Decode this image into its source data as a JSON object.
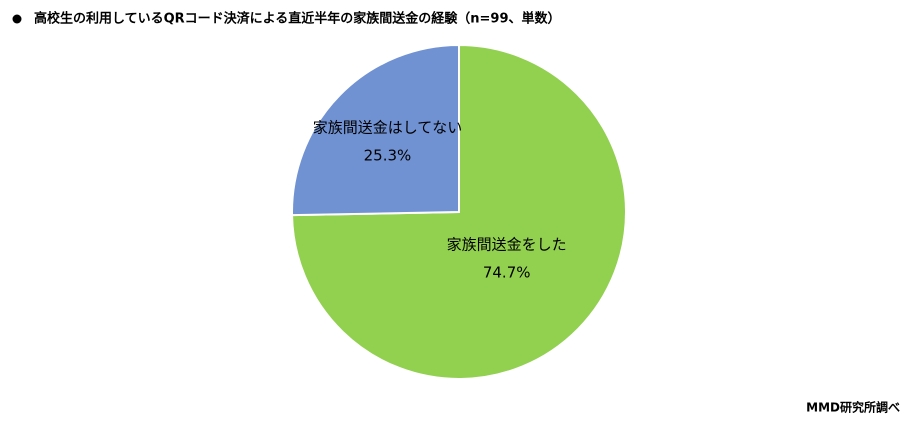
{
  "chart_data": {
    "type": "pie",
    "title": "高校生の利用しているQRコード決済による直近半年の家族間送金の経験（n=99、単数）",
    "categories": [
      "家族間送金をした",
      "家族間送金はしてない"
    ],
    "values": [
      74.7,
      25.3
    ],
    "value_labels": [
      "74.7%",
      "25.3%"
    ],
    "colors": [
      "#92d050",
      "#7092d2"
    ],
    "source": "MMD研究所調べ"
  }
}
